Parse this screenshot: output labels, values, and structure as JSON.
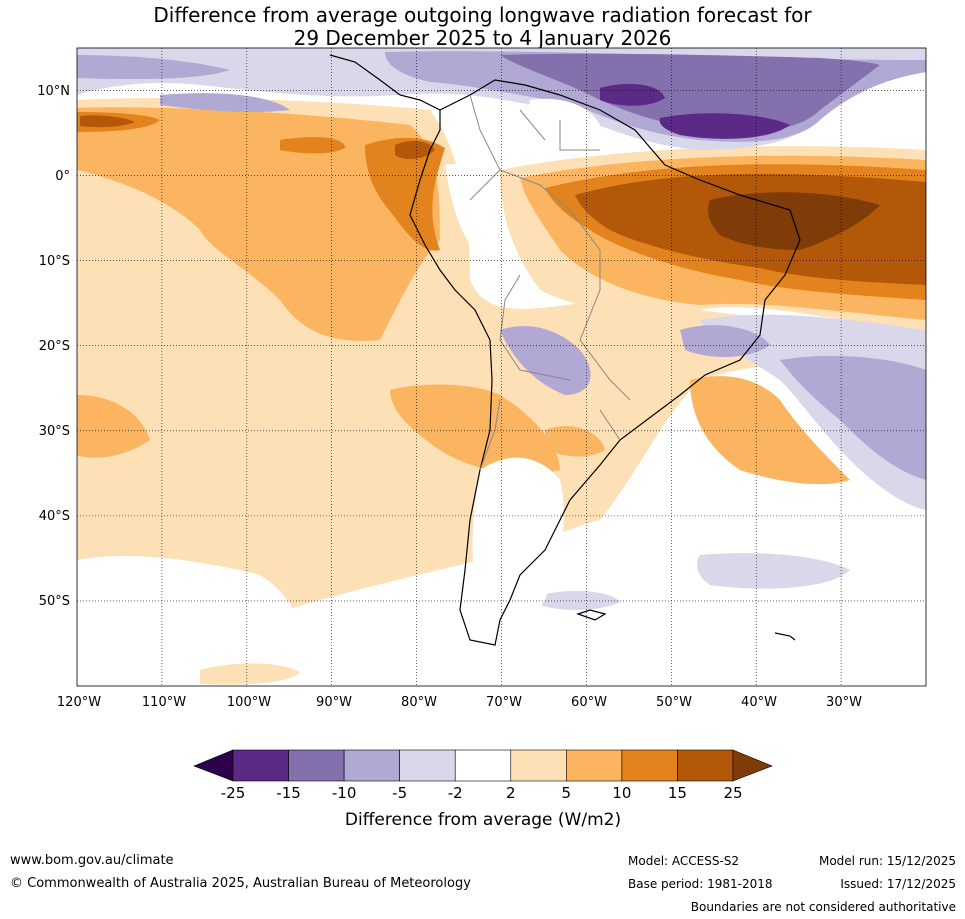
{
  "title": {
    "line1": "Difference from average outgoing longwave radiation forecast for",
    "line2": "29 December 2025 to 4 January 2026"
  },
  "map": {
    "lat_labels": [
      "10°N",
      "0°",
      "10°S",
      "20°S",
      "30°S",
      "40°S",
      "50°S"
    ],
    "lon_labels": [
      "120°W",
      "110°W",
      "100°W",
      "90°W",
      "80°W",
      "70°W",
      "60°W",
      "50°W",
      "40°W",
      "30°W"
    ],
    "extent": {
      "lon": [
        -120,
        -20
      ],
      "lat": [
        -60,
        15
      ]
    }
  },
  "colorbar": {
    "ticks": [
      "-25",
      "-15",
      "-10",
      "-5",
      "-2",
      "2",
      "5",
      "10",
      "15",
      "25"
    ],
    "colors": [
      "#5a2a86",
      "#8370ad",
      "#b1a8d3",
      "#d8d8ea",
      "#ffffff",
      "#fde0b6",
      "#fbb561",
      "#e2831d",
      "#b35808"
    ],
    "under_color": "#2d004b",
    "over_color": "#7f3b08",
    "label": "Difference from average (W/m2)"
  },
  "footer": {
    "website": "www.bom.gov.au/climate",
    "copyright": "© Commonwealth of Australia 2025, Australian Bureau of Meteorology",
    "model": "Model: ACCESS-S2",
    "model_run": "Model run: 15/12/2025",
    "base_period": "Base period: 1981-2018",
    "issued": "Issued: 17/12/2025",
    "disclaimer": "Boundaries are not considered authoritative"
  }
}
